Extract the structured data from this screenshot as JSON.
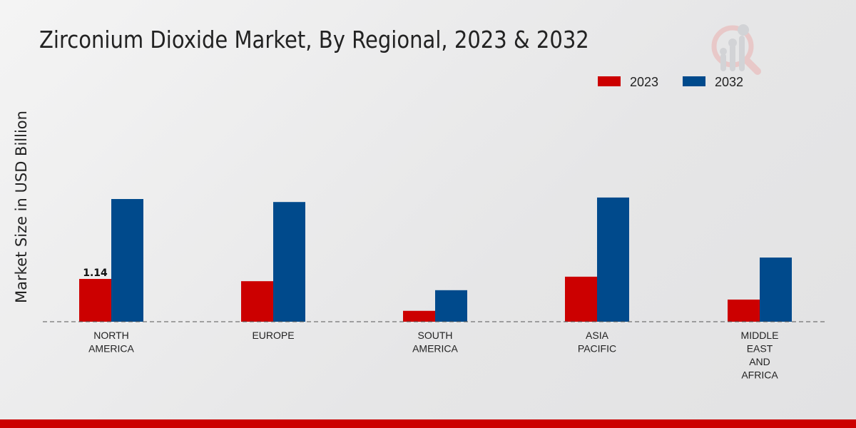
{
  "chart_data": {
    "type": "bar",
    "title": "Zirconium Dioxide Market, By Regional, 2023 & 2032",
    "xlabel": "",
    "ylabel": "Market Size in USD Billion",
    "categories": [
      "NORTH\nAMERICA",
      "EUROPE",
      "SOUTH\nAMERICA",
      "ASIA\nPACIFIC",
      "MIDDLE\nEAST\nAND\nAFRICA"
    ],
    "series": [
      {
        "name": "2023",
        "color": "#cc0000",
        "values": [
          1.14,
          1.08,
          0.29,
          1.2,
          0.59
        ]
      },
      {
        "name": "2032",
        "color": "#004a8c",
        "values": [
          3.27,
          3.19,
          0.84,
          3.31,
          1.71
        ]
      }
    ],
    "data_labels": [
      {
        "series": "2023",
        "category_index": 0,
        "text": "1.14"
      }
    ],
    "ylim": [
      0,
      4
    ],
    "grid": false,
    "legend_position": "top-right"
  }
}
